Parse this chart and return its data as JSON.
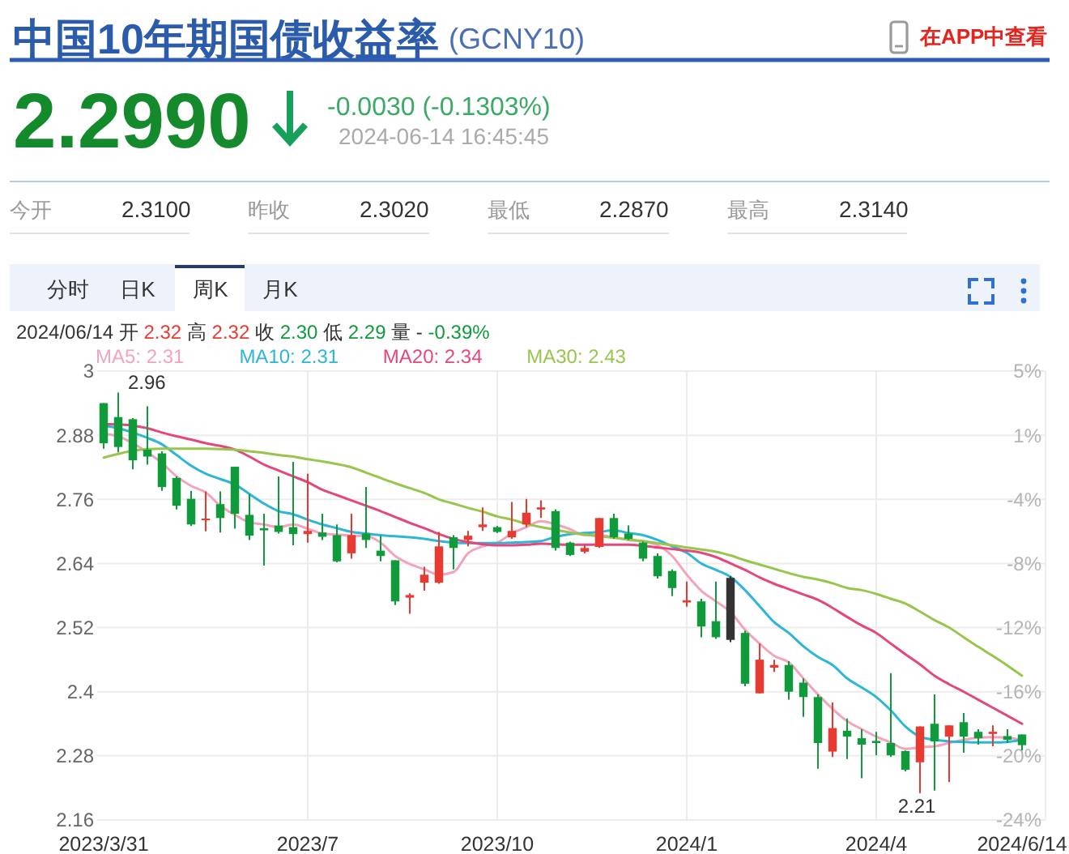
{
  "chart_data": {
    "type": "candlestick",
    "title": "中国10年期国债收益率",
    "subtitle": "(GCNY10)",
    "categories": [
      "2023/3/31",
      null,
      null,
      null,
      null,
      null,
      null,
      null,
      null,
      null,
      null,
      null,
      null,
      null,
      "2023/7",
      null,
      null,
      null,
      null,
      null,
      null,
      null,
      null,
      null,
      null,
      null,
      null,
      "2023/10",
      null,
      null,
      null,
      null,
      null,
      null,
      null,
      null,
      null,
      null,
      null,
      null,
      "2024/1",
      null,
      null,
      null,
      null,
      null,
      null,
      null,
      null,
      null,
      null,
      null,
      null,
      "2024/4",
      null,
      null,
      null,
      null,
      null,
      null,
      null,
      null,
      null,
      "2024/6/14"
    ],
    "ohlc": [
      [
        2.94,
        2.94,
        2.855,
        2.865
      ],
      [
        2.914,
        2.96,
        2.848,
        2.858
      ],
      [
        2.91,
        2.912,
        2.816,
        2.833
      ],
      [
        2.853,
        2.934,
        2.825,
        2.84
      ],
      [
        2.846,
        2.85,
        2.776,
        2.783
      ],
      [
        2.8,
        2.803,
        2.741,
        2.748
      ],
      [
        2.761,
        2.776,
        2.71,
        2.713
      ],
      [
        2.722,
        2.775,
        2.7,
        2.724
      ],
      [
        2.751,
        2.775,
        2.698,
        2.725
      ],
      [
        2.821,
        2.821,
        2.705,
        2.733
      ],
      [
        2.731,
        2.77,
        2.684,
        2.692
      ],
      [
        2.706,
        2.733,
        2.636,
        2.702
      ],
      [
        2.711,
        2.803,
        2.696,
        2.699
      ],
      [
        2.708,
        2.83,
        2.674,
        2.695
      ],
      [
        2.695,
        2.808,
        2.679,
        2.701
      ],
      [
        2.698,
        2.733,
        2.684,
        2.69
      ],
      [
        2.693,
        2.713,
        2.642,
        2.644
      ],
      [
        2.659,
        2.733,
        2.649,
        2.693
      ],
      [
        2.696,
        2.783,
        2.669,
        2.684
      ],
      [
        2.664,
        2.692,
        2.644,
        2.654
      ],
      [
        2.646,
        2.646,
        2.562,
        2.569
      ],
      [
        2.576,
        2.584,
        2.546,
        2.581
      ],
      [
        2.604,
        2.634,
        2.589,
        2.619
      ],
      [
        2.604,
        2.699,
        2.602,
        2.672
      ],
      [
        2.689,
        2.693,
        2.629,
        2.669
      ],
      [
        2.684,
        2.701,
        2.672,
        2.692
      ],
      [
        2.708,
        2.745,
        2.701,
        2.713
      ],
      [
        2.708,
        2.71,
        2.697,
        2.699
      ],
      [
        2.689,
        2.755,
        2.686,
        2.701
      ],
      [
        2.713,
        2.761,
        2.708,
        2.735
      ],
      [
        2.741,
        2.758,
        2.725,
        2.745
      ],
      [
        2.738,
        2.741,
        2.664,
        2.669
      ],
      [
        2.679,
        2.681,
        2.654,
        2.656
      ],
      [
        2.662,
        2.674,
        2.659,
        2.669
      ],
      [
        2.671,
        2.725,
        2.669,
        2.725
      ],
      [
        2.725,
        2.733,
        2.686,
        2.689
      ],
      [
        2.696,
        2.711,
        2.684,
        2.686
      ],
      [
        2.679,
        2.681,
        2.644,
        2.649
      ],
      [
        2.654,
        2.659,
        2.612,
        2.616
      ],
      [
        2.626,
        2.629,
        2.579,
        2.594
      ],
      [
        2.567,
        2.606,
        2.559,
        2.571
      ],
      [
        2.569,
        2.574,
        2.502,
        2.522
      ],
      [
        2.532,
        2.606,
        2.499,
        2.502
      ],
      [
        2.613,
        2.616,
        2.493,
        2.497
      ],
      [
        2.51,
        2.514,
        2.41,
        2.415
      ],
      [
        2.397,
        2.49,
        2.397,
        2.46
      ],
      [
        2.445,
        2.46,
        2.437,
        2.45
      ],
      [
        2.45,
        2.457,
        2.385,
        2.4
      ],
      [
        2.417,
        2.425,
        2.353,
        2.39
      ],
      [
        2.39,
        2.395,
        2.256,
        2.304
      ],
      [
        2.288,
        2.38,
        2.278,
        2.332
      ],
      [
        2.327,
        2.35,
        2.274,
        2.316
      ],
      [
        2.313,
        2.33,
        2.238,
        2.301
      ],
      [
        2.308,
        2.325,
        2.281,
        2.304
      ],
      [
        2.304,
        2.435,
        2.278,
        2.281
      ],
      [
        2.289,
        2.29,
        2.251,
        2.254
      ],
      [
        2.268,
        2.335,
        2.21,
        2.335
      ],
      [
        2.34,
        2.395,
        2.215,
        2.307
      ],
      [
        2.316,
        2.337,
        2.231,
        2.337
      ],
      [
        2.343,
        2.36,
        2.286,
        2.316
      ],
      [
        2.325,
        2.33,
        2.301,
        2.313
      ],
      [
        2.321,
        2.337,
        2.298,
        2.325
      ],
      [
        2.317,
        2.33,
        2.304,
        2.31
      ],
      [
        2.32,
        2.32,
        2.29,
        2.3
      ]
    ],
    "colors": [
      "#0f9b3c",
      "#0f9b3c",
      "#0f9b3c",
      "#0f9b3c",
      "#0f9b3c",
      "#0f9b3c",
      "#0f9b3c",
      "#e83a30",
      "#0f9b3c",
      "#0f9b3c",
      "#0f9b3c",
      "#0f9b3c",
      "#0f9b3c",
      "#0f9b3c",
      "#e83a30",
      "#0f9b3c",
      "#0f9b3c",
      "#e83a30",
      "#0f9b3c",
      "#0f9b3c",
      "#0f9b3c",
      "#e83a30",
      "#e83a30",
      "#e83a30",
      "#0f9b3c",
      "#e83a30",
      "#e83a30",
      "#0f9b3c",
      "#e83a30",
      "#e83a30",
      "#e83a30",
      "#0f9b3c",
      "#0f9b3c",
      "#e83a30",
      "#e83a30",
      "#0f9b3c",
      "#0f9b3c",
      "#0f9b3c",
      "#0f9b3c",
      "#0f9b3c",
      "#e83a30",
      "#0f9b3c",
      "#0f9b3c",
      "#333333",
      "#0f9b3c",
      "#e83a30",
      "#e83a30",
      "#0f9b3c",
      "#0f9b3c",
      "#0f9b3c",
      "#e83a30",
      "#0f9b3c",
      "#0f9b3c",
      "#0f9b3c",
      "#0f9b3c",
      "#0f9b3c",
      "#e83a30",
      "#0f9b3c",
      "#e83a30",
      "#0f9b3c",
      "#0f9b3c",
      "#e83a30",
      "#0f9b3c",
      "#0f9b3c"
    ],
    "series": [
      {
        "name": "MA5: 2.31",
        "type": "line",
        "color": "#f4a3bd",
        "values": [
          2.883,
          2.878,
          2.865,
          2.848,
          2.828,
          2.803,
          2.785,
          2.773,
          2.748,
          2.731,
          2.717,
          2.713,
          2.708,
          2.713,
          2.705,
          2.696,
          2.694,
          2.692,
          2.692,
          2.679,
          2.654,
          2.639,
          2.629,
          2.619,
          2.624,
          2.659,
          2.672,
          2.679,
          2.696,
          2.708,
          2.719,
          2.713,
          2.704,
          2.693,
          2.693,
          2.689,
          2.684,
          2.681,
          2.674,
          2.654,
          2.619,
          2.589,
          2.569,
          2.549,
          2.516,
          2.49,
          2.467,
          2.455,
          2.425,
          2.395,
          2.368,
          2.345,
          2.33,
          2.316,
          2.305,
          2.293,
          2.296,
          2.298,
          2.304,
          2.31,
          2.314,
          2.315,
          2.314,
          2.31
        ]
      },
      {
        "name": "MA10: 2.31",
        "type": "line",
        "color": "#2db6d6",
        "values": [
          2.898,
          2.893,
          2.885,
          2.875,
          2.863,
          2.843,
          2.823,
          2.808,
          2.798,
          2.788,
          2.77,
          2.752,
          2.738,
          2.732,
          2.722,
          2.713,
          2.706,
          2.699,
          2.696,
          2.693,
          2.691,
          2.689,
          2.686,
          2.682,
          2.679,
          2.678,
          2.678,
          2.678,
          2.679,
          2.68,
          2.682,
          2.69,
          2.695,
          2.697,
          2.699,
          2.702,
          2.697,
          2.693,
          2.684,
          2.672,
          2.66,
          2.64,
          2.628,
          2.615,
          2.59,
          2.56,
          2.53,
          2.51,
          2.485,
          2.465,
          2.45,
          2.425,
          2.408,
          2.39,
          2.365,
          2.335,
          2.316,
          2.31,
          2.307,
          2.306,
          2.305,
          2.305,
          2.306,
          2.31
        ]
      },
      {
        "name": "MA20: 2.34",
        "type": "line",
        "color": "#e4477c",
        "values": [
          2.901,
          2.9,
          2.898,
          2.893,
          2.885,
          2.878,
          2.872,
          2.865,
          2.86,
          2.853,
          2.84,
          2.825,
          2.814,
          2.803,
          2.792,
          2.778,
          2.768,
          2.758,
          2.748,
          2.738,
          2.727,
          2.716,
          2.706,
          2.695,
          2.686,
          2.68,
          2.676,
          2.674,
          2.674,
          2.675,
          2.677,
          2.676,
          2.675,
          2.675,
          2.675,
          2.675,
          2.675,
          2.673,
          2.67,
          2.667,
          2.664,
          2.66,
          2.652,
          2.64,
          2.628,
          2.614,
          2.602,
          2.592,
          2.582,
          2.572,
          2.557,
          2.54,
          2.524,
          2.51,
          2.49,
          2.47,
          2.451,
          2.43,
          2.414,
          2.4,
          2.385,
          2.37,
          2.355,
          2.34
        ]
      },
      {
        "name": "MA30: 2.43",
        "type": "line",
        "color": "#98c64c",
        "values": [
          2.838,
          2.845,
          2.851,
          2.854,
          2.855,
          2.855,
          2.855,
          2.855,
          2.854,
          2.853,
          2.85,
          2.847,
          2.843,
          2.84,
          2.835,
          2.831,
          2.826,
          2.82,
          2.81,
          2.8,
          2.79,
          2.781,
          2.772,
          2.76,
          2.752,
          2.744,
          2.737,
          2.728,
          2.722,
          2.714,
          2.708,
          2.703,
          2.698,
          2.694,
          2.691,
          2.688,
          2.685,
          2.682,
          2.678,
          2.674,
          2.67,
          2.666,
          2.662,
          2.655,
          2.646,
          2.638,
          2.63,
          2.622,
          2.615,
          2.61,
          2.603,
          2.594,
          2.59,
          2.583,
          2.574,
          2.565,
          2.55,
          2.534,
          2.52,
          2.502,
          2.484,
          2.467,
          2.449,
          2.43
        ]
      }
    ],
    "ylim": [
      2.16,
      3
    ],
    "yticks": [
      2.16,
      2.28,
      2.4,
      2.52,
      2.64,
      2.76,
      2.88,
      3
    ],
    "y2lim": [
      -24.5,
      4.9
    ],
    "y2ticks": [
      {
        "value": 4.9,
        "label": "5%"
      },
      {
        "value": 0.7,
        "label": "1%"
      },
      {
        "value": -3.5,
        "label": "-4%"
      },
      {
        "value": -7.7,
        "label": "-8%"
      },
      {
        "value": -11.9,
        "label": "-12%"
      },
      {
        "value": -16.1,
        "label": "-16%"
      },
      {
        "value": -20.3,
        "label": "-20%"
      },
      {
        "value": -24.5,
        "label": "-24%"
      }
    ],
    "grid": true,
    "legend": "top left",
    "annotations": [
      "在APP中查看",
      "2.2990",
      "-0.0030 (-0.1303%)",
      "2024-06-14 16:45:45",
      "今开",
      "2.3100",
      "昨收",
      "2.3020",
      "最低",
      "2.2870",
      "最高",
      "2.3140",
      "分时",
      "日K",
      "周K",
      "月K",
      "2024/06/14 开 2.32 高 2.32 收 2.30 低 2.29 量 - -0.39%",
      "2.96",
      {
        "text": "2.21",
        "y": 2.21
      }
    ]
  }
}
